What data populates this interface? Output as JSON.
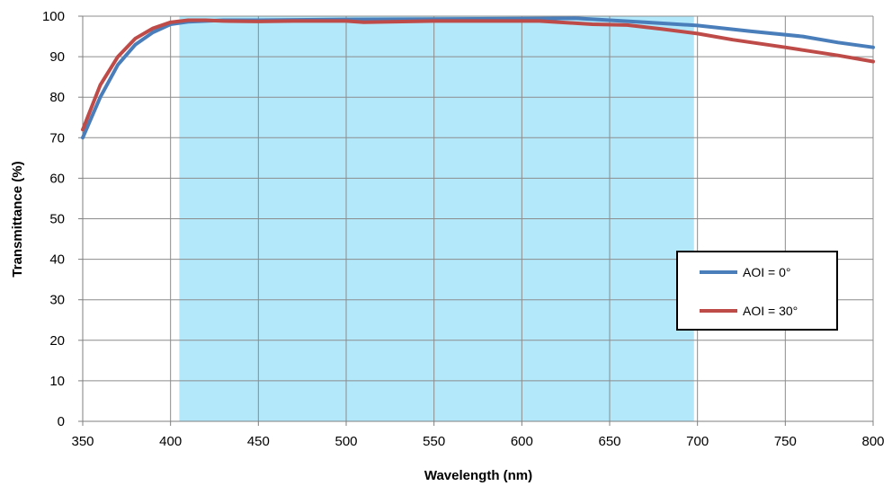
{
  "chart_data": {
    "type": "line",
    "title": "",
    "xlabel": "Wavelength (nm)",
    "ylabel": "Transmittance (%)",
    "xlim": [
      350,
      800
    ],
    "ylim": [
      0,
      100
    ],
    "x_ticks": [
      350,
      400,
      450,
      500,
      550,
      600,
      650,
      700,
      750,
      800
    ],
    "y_ticks": [
      0,
      10,
      20,
      30,
      40,
      50,
      60,
      70,
      80,
      90,
      100
    ],
    "grid": true,
    "legend_position": "right",
    "highlight_band": {
      "x_start": 405,
      "x_end": 698,
      "color": "#b3e8fb"
    },
    "series": [
      {
        "name": "AOI = 0°",
        "color": "#4a7ebb",
        "x": [
          350,
          360,
          370,
          380,
          390,
          400,
          410,
          420,
          430,
          450,
          500,
          550,
          600,
          630,
          650,
          670,
          700,
          730,
          760,
          780,
          800
        ],
        "y": [
          70,
          80,
          88,
          93,
          96,
          98,
          98.6,
          98.8,
          99,
          99,
          99.2,
          99.3,
          99.4,
          99.5,
          99,
          98.5,
          97.7,
          96.3,
          95,
          93.5,
          92.3
        ]
      },
      {
        "name": "AOI = 30°",
        "color": "#be4b48",
        "x": [
          350,
          360,
          370,
          380,
          390,
          400,
          410,
          420,
          430,
          450,
          470,
          500,
          510,
          550,
          600,
          610,
          640,
          660,
          680,
          700,
          720,
          750,
          780,
          800
        ],
        "y": [
          72,
          83,
          90,
          94.5,
          97,
          98.5,
          99,
          99,
          98.8,
          98.7,
          98.8,
          98.8,
          98.5,
          98.8,
          98.8,
          98.8,
          98,
          97.8,
          96.8,
          95.7,
          94.2,
          92.3,
          90.3,
          88.8
        ]
      }
    ]
  }
}
